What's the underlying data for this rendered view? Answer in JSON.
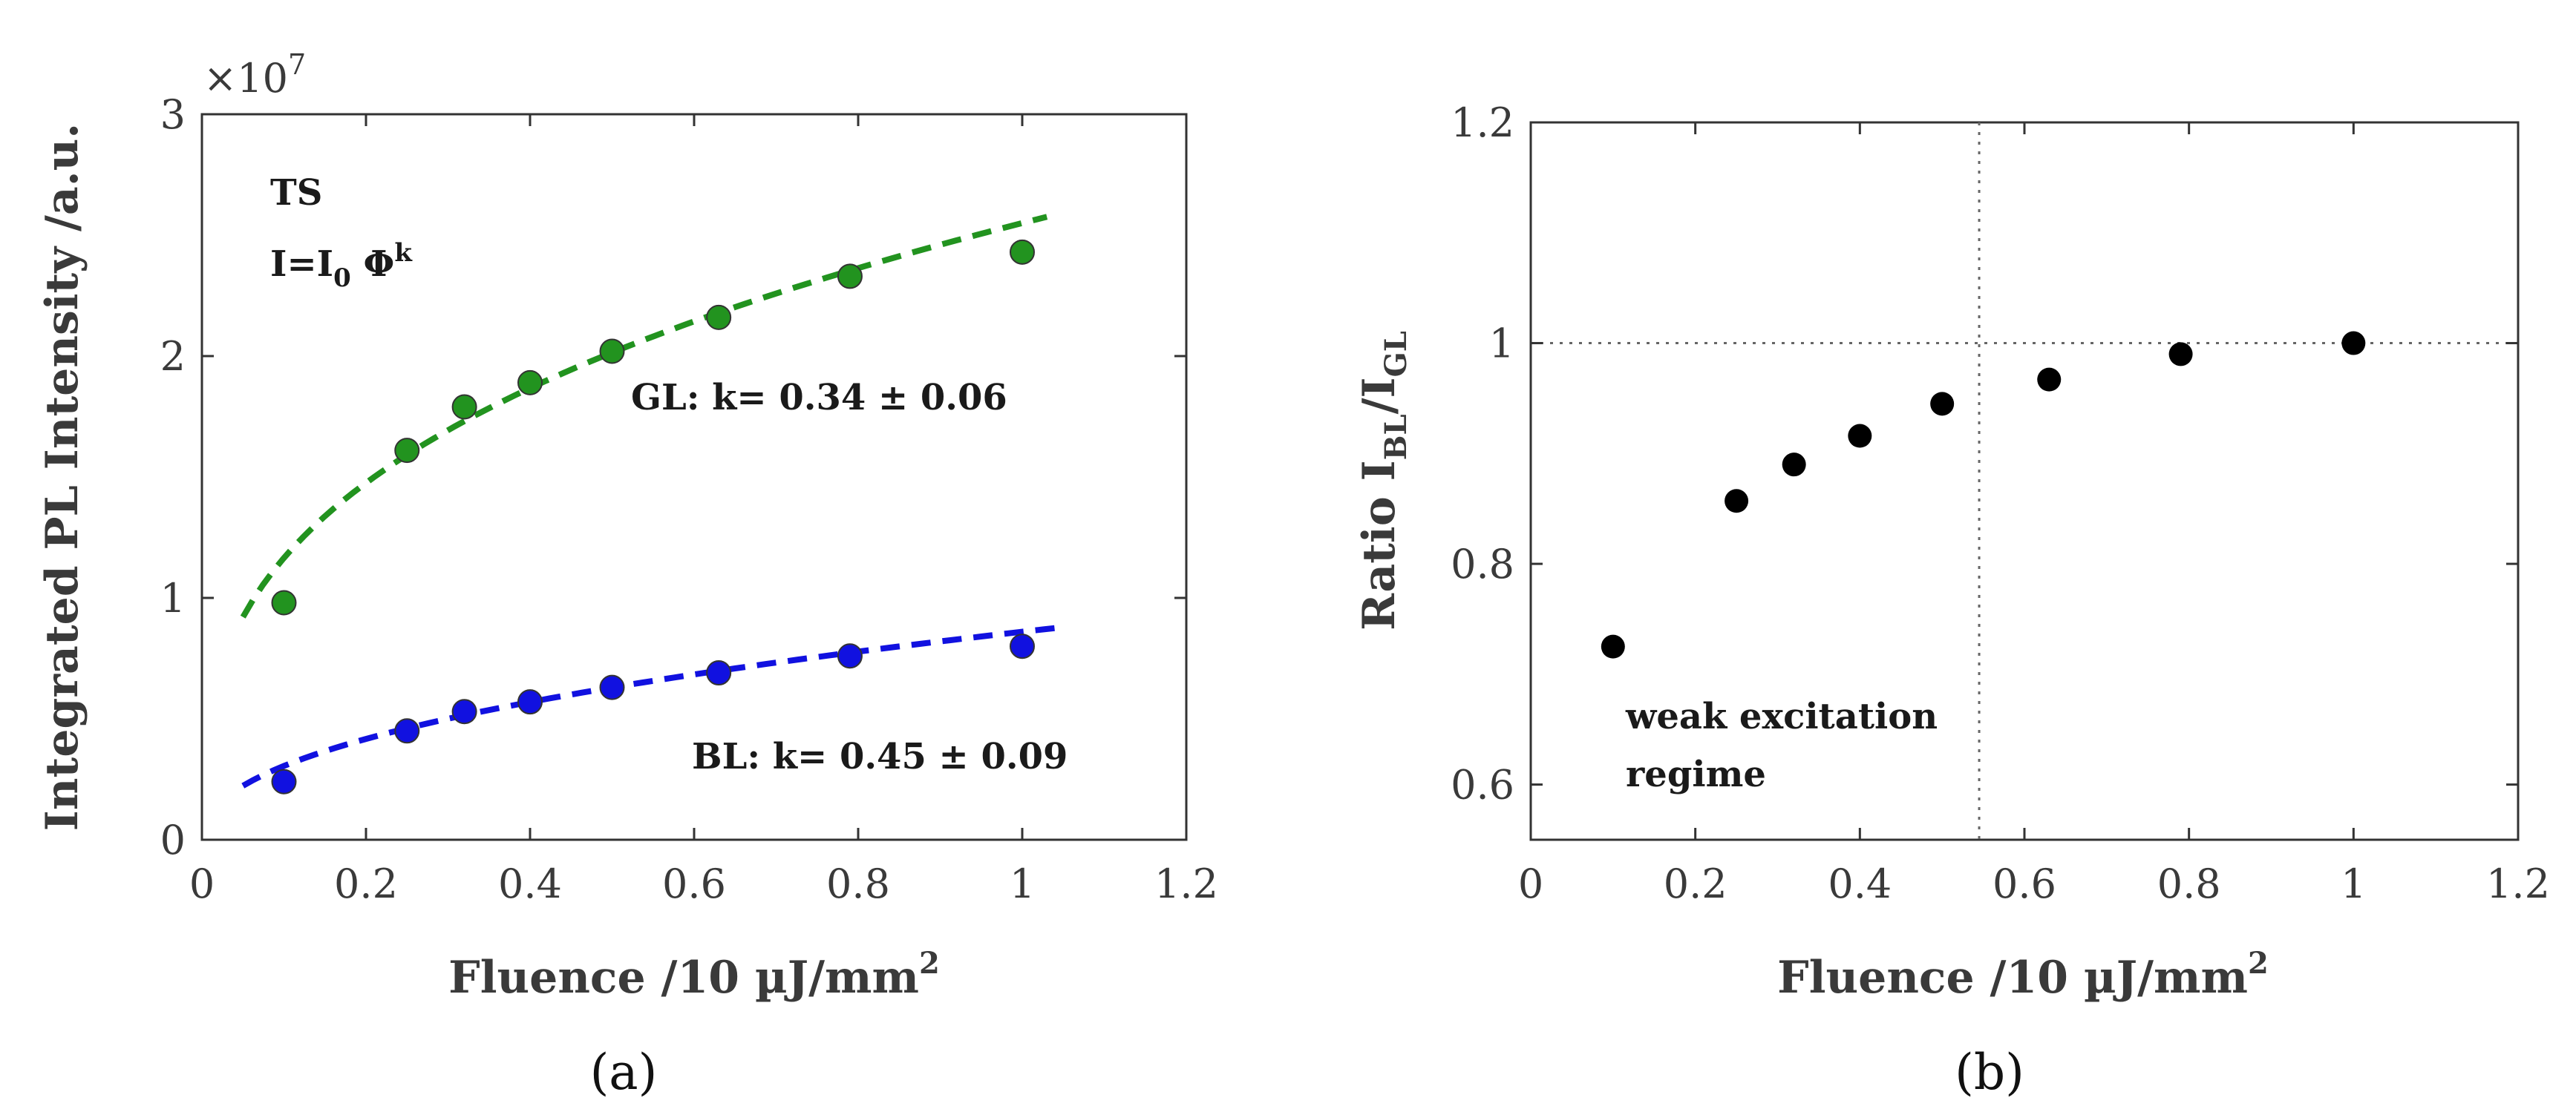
{
  "chart_data": [
    {
      "type": "scatter",
      "panel_label": "(a)",
      "xlabel": "Fluence /10 µJ/mm",
      "xlabel_sup": "2",
      "ylabel": "Integrated PL Intensity /a.u.",
      "xlim": [
        0,
        1.2
      ],
      "ylim": [
        0,
        3
      ],
      "x_ticks": [
        "0",
        "0.2",
        "0.4",
        "0.6",
        "0.8",
        "1",
        "1.2"
      ],
      "y_ticks": [
        "0",
        "1",
        "2",
        "3"
      ],
      "y_scale_label": "×10",
      "y_scale_exp": "7",
      "annotations": {
        "sample": "TS",
        "formula_main": "I=I",
        "formula_sub": "0",
        "formula_phi": " Φ",
        "formula_sup": "k",
        "gl_fit": "GL: k= 0.34 ± 0.06",
        "bl_fit": "BL: k= 0.45 ± 0.09"
      },
      "series": [
        {
          "name": "GL",
          "color": "#22931f",
          "x": [
            0.1,
            0.25,
            0.32,
            0.4,
            0.5,
            0.63,
            0.79,
            1.0
          ],
          "values": [
            0.98,
            1.61,
            1.79,
            1.89,
            2.02,
            2.16,
            2.33,
            2.43
          ],
          "fit": {
            "k": 0.34,
            "amplitude": 2.55,
            "x_range": [
              0.05,
              1.03
            ]
          }
        },
        {
          "name": "BL",
          "color": "#1111e0",
          "x": [
            0.1,
            0.25,
            0.32,
            0.4,
            0.5,
            0.63,
            0.79,
            1.0
          ],
          "values": [
            0.24,
            0.45,
            0.53,
            0.57,
            0.63,
            0.69,
            0.76,
            0.8
          ],
          "fit": {
            "k": 0.45,
            "amplitude": 0.86,
            "x_range": [
              0.05,
              1.05
            ]
          }
        }
      ]
    },
    {
      "type": "scatter",
      "panel_label": "(b)",
      "xlabel": "Fluence /10 µJ/mm",
      "xlabel_sup": "2",
      "ylabel_main": "Ratio I",
      "ylabel_sub1": "BL",
      "ylabel_mid": "/I",
      "ylabel_sub2": "GL",
      "xlim": [
        0,
        1.2
      ],
      "ylim": [
        0.55,
        1.2
      ],
      "x_ticks": [
        "0",
        "0.2",
        "0.4",
        "0.6",
        "0.8",
        "1",
        "1.2"
      ],
      "y_ticks": [
        "0.6",
        "0.8",
        "1",
        "1.2"
      ],
      "y_tick_values": [
        0.6,
        0.8,
        1.0,
        1.2
      ],
      "annotations": {
        "regime_line1": "weak excitation",
        "regime_line2": "regime"
      },
      "guides": {
        "vertical_x": 0.545,
        "horizontal_y": 1.0
      },
      "series": [
        {
          "name": "Ratio",
          "color": "#000000",
          "x": [
            0.1,
            0.25,
            0.32,
            0.4,
            0.5,
            0.63,
            0.79,
            1.0
          ],
          "values": [
            0.725,
            0.857,
            0.89,
            0.916,
            0.945,
            0.967,
            0.99,
            1.0
          ]
        }
      ]
    }
  ]
}
